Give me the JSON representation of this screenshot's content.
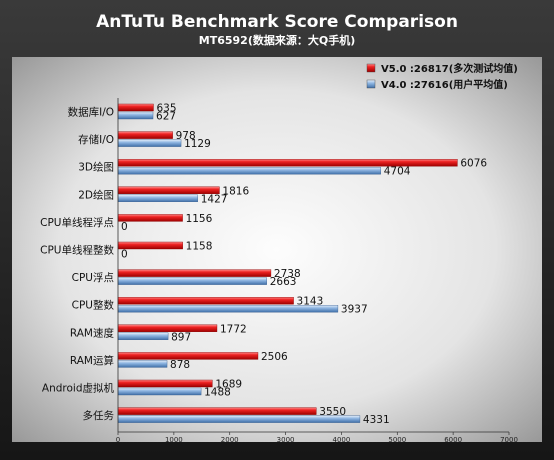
{
  "chart_data": {
    "type": "bar",
    "orientation": "horizontal",
    "title": "AnTuTu Benchmark Score Comparison",
    "subtitle": "MT6592(数据来源：大Q手机)",
    "categories": [
      "数据库I/O",
      "存储I/O",
      "3D绘图",
      "2D绘图",
      "CPU单线程浮点",
      "CPU单线程整数",
      "CPU浮点",
      "CPU整数",
      "RAM速度",
      "RAM运算",
      "Android虚拟机",
      "多任务"
    ],
    "series": [
      {
        "name": "V5.0 :26817(多次测试均值)",
        "color": "#e01010",
        "values": [
          635,
          978,
          6076,
          1816,
          1156,
          1158,
          2738,
          3143,
          1772,
          2506,
          1689,
          3550
        ]
      },
      {
        "name": "V4.0 :27616(用户平均值)",
        "color": "#7fa8d8",
        "values": [
          627,
          1129,
          4704,
          1427,
          0,
          0,
          2663,
          3937,
          897,
          878,
          1488,
          4331
        ]
      }
    ],
    "xlim": [
      0,
      7000
    ],
    "xticks": [
      0,
      1000,
      2000,
      3000,
      4000,
      5000,
      6000,
      7000
    ],
    "grid": false,
    "legend_position": "top-right",
    "background_colors": {
      "outer_top": "#3a3a3a",
      "outer_bottom": "#161616",
      "plot_center": "#fdfdfd",
      "plot_edge": "#8d8d8d"
    }
  }
}
